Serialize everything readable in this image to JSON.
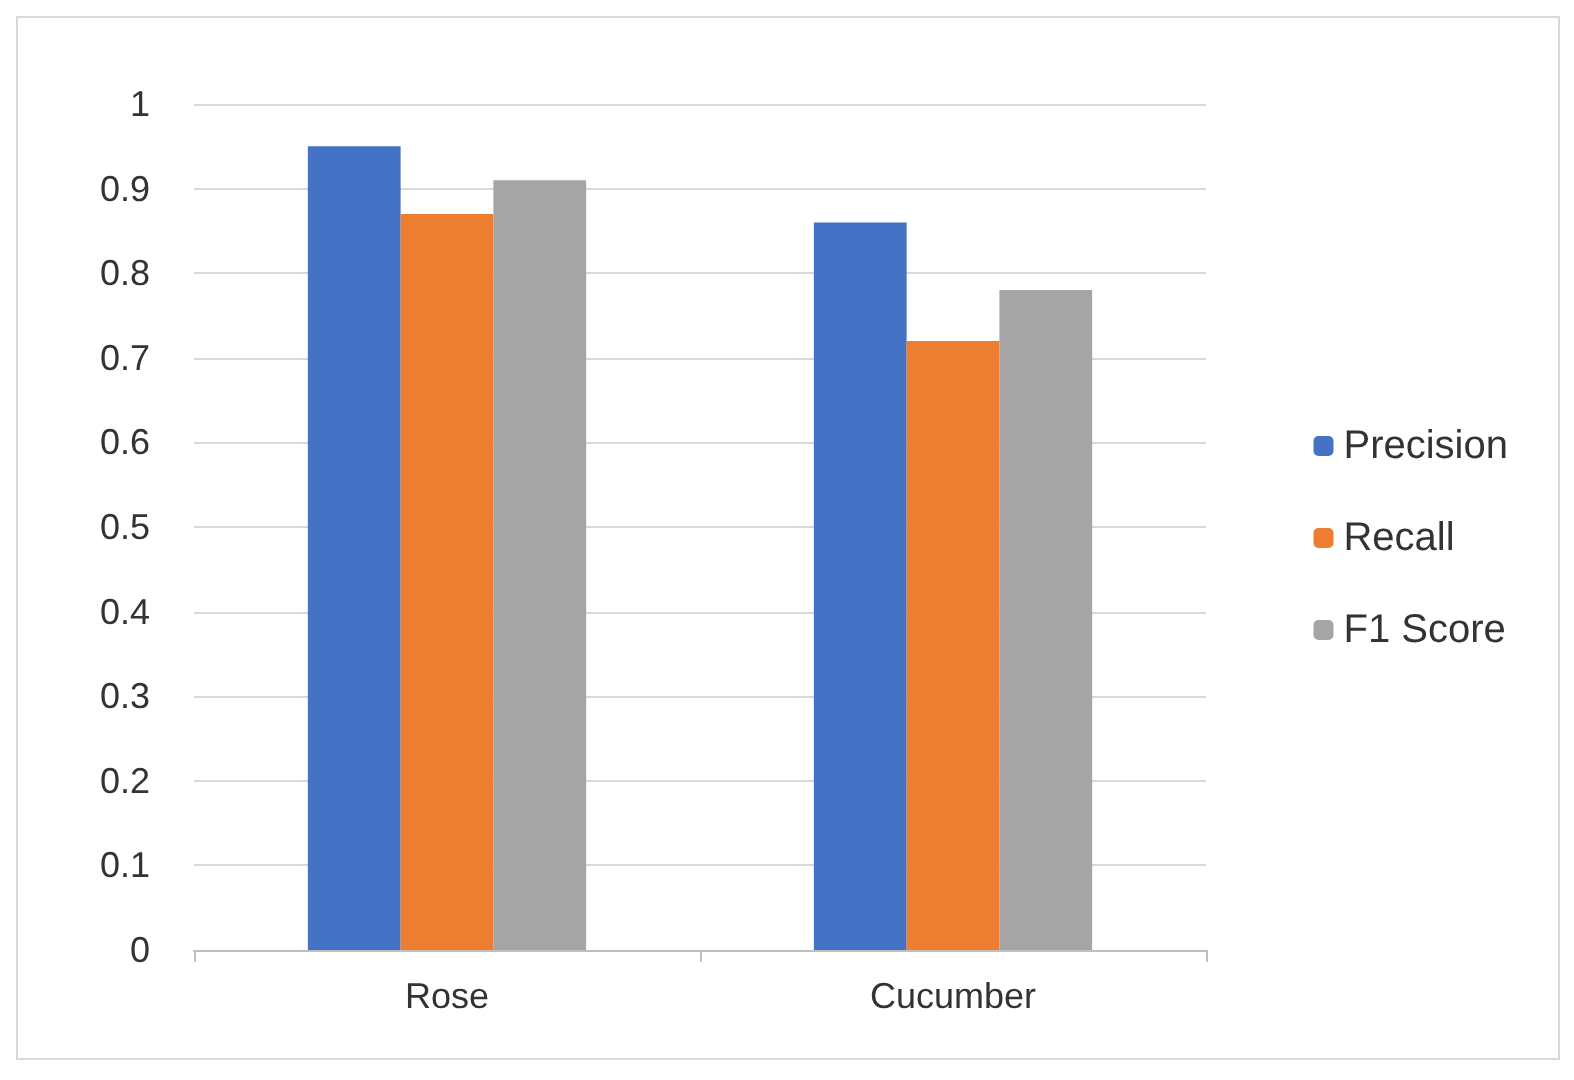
{
  "chart_data": {
    "type": "bar",
    "categories": [
      "Rose",
      "Cucumber"
    ],
    "series": [
      {
        "name": "Precision",
        "color": "#4472c4",
        "values": [
          0.95,
          0.86
        ]
      },
      {
        "name": "Recall",
        "color": "#ed7d31",
        "values": [
          0.87,
          0.72
        ]
      },
      {
        "name": "F1 Score",
        "color": "#a5a5a5",
        "values": [
          0.91,
          0.78
        ]
      }
    ],
    "ylim": [
      0,
      1
    ],
    "yticks": [
      0,
      0.1,
      0.2,
      0.3,
      0.4,
      0.5,
      0.6,
      0.7,
      0.8,
      0.9,
      1
    ],
    "grid": "y",
    "legend": "right"
  }
}
